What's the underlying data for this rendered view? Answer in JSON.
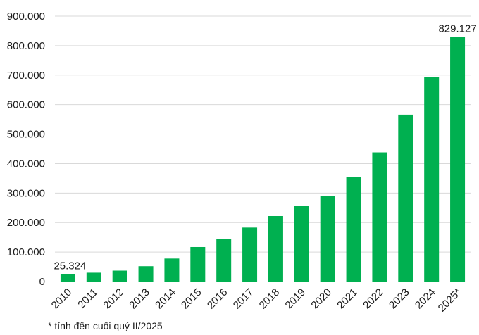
{
  "chart_data": {
    "type": "bar",
    "categories": [
      "2010",
      "2011",
      "2012",
      "2013",
      "2014",
      "2015",
      "2016",
      "2017",
      "2018",
      "2019",
      "2020",
      "2021",
      "2022",
      "2023",
      "2024",
      "2025*"
    ],
    "values": [
      25324,
      30000,
      37000,
      52000,
      78000,
      117000,
      144000,
      183000,
      222000,
      257000,
      291000,
      355000,
      438000,
      566000,
      693000,
      829127
    ],
    "data_labels": [
      {
        "index": 0,
        "text": "25.324"
      },
      {
        "index": 15,
        "text": "829.127"
      }
    ],
    "ytick_labels": [
      "0",
      "100.000",
      "200.000",
      "300.000",
      "400.000",
      "500.000",
      "600.000",
      "700.000",
      "800.000",
      "900.000"
    ],
    "ylim": [
      0,
      900000
    ],
    "ytick_step": 100000,
    "grid": true,
    "bar_color": "#00b050",
    "footnote": "* tính đến cuối quý II/2025"
  }
}
